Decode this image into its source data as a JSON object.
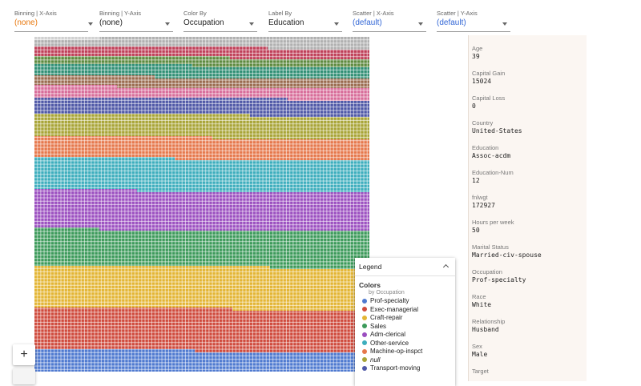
{
  "toolbar": {
    "dropdowns": [
      {
        "label": "Binning | X-Axis",
        "value": "(none)",
        "tone": "orange"
      },
      {
        "label": "Binning | Y-Axis",
        "value": "(none)",
        "tone": "dark"
      },
      {
        "label": "Color By",
        "value": "Occupation",
        "tone": "dark"
      },
      {
        "label": "Label By",
        "value": "Education",
        "tone": "dark"
      },
      {
        "label": "Scatter | X-Axis",
        "value": "(default)",
        "tone": "blue"
      },
      {
        "label": "Scatter | Y-Axis",
        "value": "(default)",
        "tone": "blue"
      }
    ]
  },
  "canvas": {
    "zoom_in_label": "+",
    "colors": {
      "Prof-specialty": "#4f7ad0",
      "Exec-managerial": "#cf4a3c",
      "Craft-repair": "#e3b534",
      "Sales": "#3c9a5a",
      "Adm-clerical": "#9b4fc0",
      "Other-service": "#3daebd",
      "Machine-op-inspct": "#e6784c",
      "null": "#a8a436",
      "Transport-moving": "#4f58a7",
      "Handlers-cleaners": "#d86c99",
      "Farming-fishing": "#9a6b4f",
      "Tech-support": "#2f8f74",
      "Protective-serv": "#bf3f58",
      "Priv-house-serv": "#5d8a3e",
      "Armed-Forces": "#b0b0b0"
    }
  },
  "legend": {
    "header": "Legend",
    "title": "Colors",
    "subtitle": "by Occupation",
    "items": [
      {
        "label": "Prof-specialty",
        "color": "#4f7ad0",
        "italic": false
      },
      {
        "label": "Exec-managerial",
        "color": "#cf4a3c",
        "italic": false
      },
      {
        "label": "Craft-repair",
        "color": "#e3b534",
        "italic": false
      },
      {
        "label": "Sales",
        "color": "#3c9a5a",
        "italic": false
      },
      {
        "label": "Adm-clerical",
        "color": "#9b4fc0",
        "italic": false
      },
      {
        "label": "Other-service",
        "color": "#3daebd",
        "italic": false
      },
      {
        "label": "Machine-op-inspct",
        "color": "#e6784c",
        "italic": false
      },
      {
        "label": "null",
        "color": "#a8a436",
        "italic": true
      },
      {
        "label": "Transport-moving",
        "color": "#4f58a7",
        "italic": false
      }
    ]
  },
  "details": [
    {
      "key": "Age",
      "value": "39"
    },
    {
      "key": "Capital Gain",
      "value": "15024"
    },
    {
      "key": "Capital Loss",
      "value": "0"
    },
    {
      "key": "Country",
      "value": "United-States"
    },
    {
      "key": "Education",
      "value": "Assoc-acdm"
    },
    {
      "key": "Education-Num",
      "value": "12"
    },
    {
      "key": "fnlwgt",
      "value": "172927"
    },
    {
      "key": "Hours per week",
      "value": "50"
    },
    {
      "key": "Marital Status",
      "value": "Married-civ-spouse"
    },
    {
      "key": "Occupation",
      "value": "Prof-specialty"
    },
    {
      "key": "Race",
      "value": "White"
    },
    {
      "key": "Relationship",
      "value": "Husband"
    },
    {
      "key": "Sex",
      "value": "Male"
    },
    {
      "key": "Target",
      "value": ""
    }
  ]
}
